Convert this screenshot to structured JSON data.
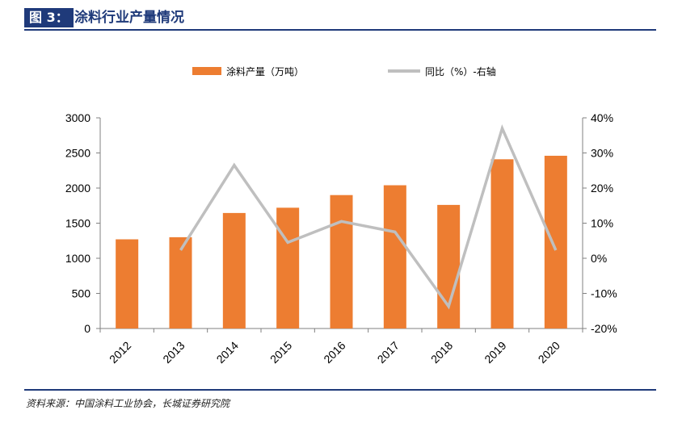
{
  "header": {
    "figure_num": "图 3：",
    "title": "涂料行业产量情况"
  },
  "footer": {
    "source": "资料来源：中国涂料工业协会，长城证券研究院"
  },
  "colors": {
    "bar": "#ED7D31",
    "line": "#BFBFBF",
    "accent": "#1F3A7A"
  },
  "chart_data": {
    "type": "bar",
    "categories": [
      "2012",
      "2013",
      "2014",
      "2015",
      "2016",
      "2017",
      "2018",
      "2019",
      "2020"
    ],
    "series": [
      {
        "name": "涂料产量（万吨）",
        "type": "bar",
        "axis": "left",
        "values": [
          1270,
          1300,
          1645,
          1720,
          1900,
          2040,
          1760,
          2410,
          2460
        ]
      },
      {
        "name": "同比（%）-右轴",
        "type": "line",
        "axis": "right",
        "values": [
          null,
          2.3,
          26.5,
          4.5,
          10.5,
          7.5,
          -13.7,
          37.0,
          2.3
        ]
      }
    ],
    "ylim_left": [
      0,
      3000
    ],
    "yticks_left": [
      "0",
      "500",
      "1000",
      "1500",
      "2000",
      "2500",
      "3000"
    ],
    "ylim_right": [
      -20,
      40
    ],
    "yticks_right": [
      "-20%",
      "-10%",
      "0%",
      "10%",
      "20%",
      "30%",
      "40%"
    ],
    "legend_position": "top",
    "grid": false
  }
}
